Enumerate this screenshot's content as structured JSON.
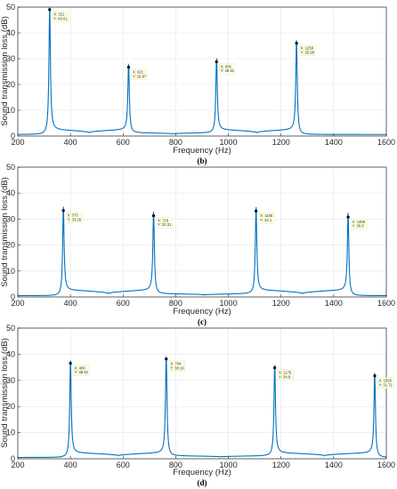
{
  "chart_data": [
    {
      "type": "line",
      "panel_label": "(b)",
      "xlabel": "Frequency (Hz)",
      "ylabel": "Sound transmission loss (dB)",
      "xlim": [
        200,
        1600
      ],
      "ylim": [
        0,
        50
      ],
      "xticks": [
        200,
        400,
        600,
        800,
        1000,
        1200,
        1400,
        1600
      ],
      "yticks": [
        0,
        10,
        20,
        30,
        40,
        50
      ],
      "grid": true,
      "color": "#0072BD",
      "baseline": 0.6,
      "trough": 1.9,
      "datatips": [
        {
          "x": 321,
          "y": 49.01,
          "x_text": "X: 321",
          "y_text": "Y: 49.01"
        },
        {
          "x": 621,
          "y": 26.67,
          "x_text": "X: 621",
          "y_text": "Y: 26.67"
        },
        {
          "x": 955,
          "y": 28.81,
          "x_text": "X: 955",
          "y_text": "Y: 28.81"
        },
        {
          "x": 1259,
          "y": 35.98,
          "x_text": "X: 1259",
          "y_text": "Y: 35.98"
        }
      ]
    },
    {
      "type": "line",
      "panel_label": "(c)",
      "xlabel": "Frequency (Hz)",
      "ylabel": "Sound transmission loss (dB)",
      "xlim": [
        200,
        1600
      ],
      "ylim": [
        0,
        50
      ],
      "xticks": [
        200,
        400,
        600,
        800,
        1000,
        1200,
        1400,
        1600
      ],
      "yticks": [
        0,
        10,
        20,
        30,
        40,
        50
      ],
      "grid": true,
      "color": "#0072BD",
      "baseline": 0.5,
      "trough": 2.2,
      "datatips": [
        {
          "x": 373,
          "y": 33.26,
          "x_text": "X: 373",
          "y_text": "Y: 33.26"
        },
        {
          "x": 716,
          "y": 31.31,
          "x_text": "X: 716",
          "y_text": "Y: 31.31"
        },
        {
          "x": 1105,
          "y": 33.1,
          "x_text": "X: 1105",
          "y_text": "Y: 33.1"
        },
        {
          "x": 1455,
          "y": 30.8,
          "x_text": "X: 1455",
          "y_text": "Y: 30.8"
        }
      ]
    },
    {
      "type": "line",
      "panel_label": "(d)",
      "xlabel": "Frequency (Hz)",
      "ylabel": "Sound transmission loss (dB)",
      "xlim": [
        200,
        1600
      ],
      "ylim": [
        0,
        50
      ],
      "xticks": [
        200,
        400,
        600,
        800,
        1000,
        1200,
        1400,
        1600
      ],
      "yticks": [
        0,
        10,
        20,
        30,
        40,
        50
      ],
      "grid": true,
      "color": "#0072BD",
      "baseline": 0.5,
      "trough": 1.8,
      "datatips": [
        {
          "x": 400,
          "y": 36.52,
          "x_text": "X: 400",
          "y_text": "Y: 36.52"
        },
        {
          "x": 764,
          "y": 38.16,
          "x_text": "X: 764",
          "y_text": "Y: 38.16"
        },
        {
          "x": 1176,
          "y": 34.8,
          "x_text": "X: 1176",
          "y_text": "Y: 34.8"
        },
        {
          "x": 1556,
          "y": 31.71,
          "x_text": "X: 1556",
          "y_text": "Y: 31.71"
        }
      ]
    }
  ]
}
